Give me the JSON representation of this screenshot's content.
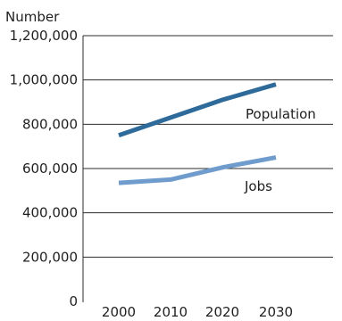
{
  "chart_data": {
    "type": "line",
    "title": "",
    "xlabel": "",
    "ylabel": "Number",
    "x": [
      2000,
      2010,
      2020,
      2030
    ],
    "x_tick_labels": [
      "2000",
      "2010",
      "2020",
      "2030"
    ],
    "ylim": [
      0,
      1200000
    ],
    "y_ticks": [
      0,
      200000,
      400000,
      600000,
      800000,
      1000000,
      1200000
    ],
    "y_tick_labels": [
      "0",
      "200,000",
      "400,000",
      "600,000",
      "800,000",
      "1,000,000",
      "1,200,000"
    ],
    "grid": true,
    "legend": "none",
    "series": [
      {
        "name": "Population",
        "values": [
          750000,
          830000,
          910000,
          980000
        ],
        "color": "#2f6b9a"
      },
      {
        "name": "Jobs",
        "values": [
          535000,
          550000,
          605000,
          650000
        ],
        "color": "#6f9ccd"
      }
    ]
  }
}
